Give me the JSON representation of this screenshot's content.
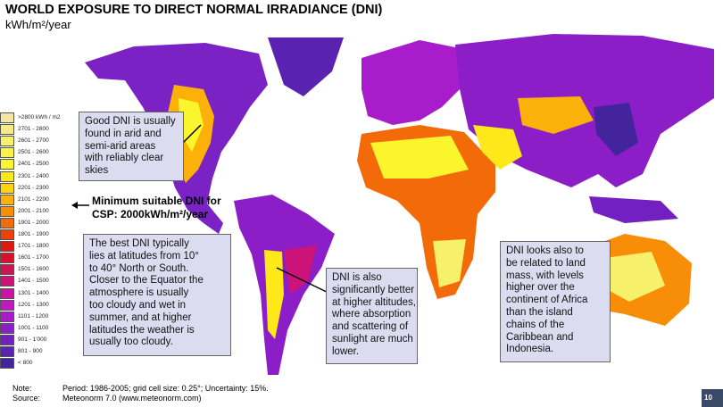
{
  "header": {
    "title": "WORLD EXPOSURE TO DIRECT NORMAL IRRADIANCE (DNI)",
    "subtitle": "kWh/m²/year"
  },
  "legend": {
    "items": [
      {
        "label": ">2800 kWh / m2",
        "color": "#f2e6a0"
      },
      {
        "label": "2701 - 2800",
        "color": "#f5ec86"
      },
      {
        "label": "2601 - 2700",
        "color": "#f7f06a"
      },
      {
        "label": "2501 - 2600",
        "color": "#f9f24c"
      },
      {
        "label": "2401 - 2500",
        "color": "#fbf52e"
      },
      {
        "label": "2301 - 2400",
        "color": "#fde81a"
      },
      {
        "label": "2201 - 2300",
        "color": "#fdd20f"
      },
      {
        "label": "2101 - 2200",
        "color": "#fcb10a"
      },
      {
        "label": "2001 - 2100",
        "color": "#f88e08"
      },
      {
        "label": "1901 - 2000",
        "color": "#f36a08"
      },
      {
        "label": "1801 - 1900",
        "color": "#ec420a"
      },
      {
        "label": "1701 - 1800",
        "color": "#e2180e"
      },
      {
        "label": "1601 - 1700",
        "color": "#d8102c"
      },
      {
        "label": "1501 - 1600",
        "color": "#d01250"
      },
      {
        "label": "1401 - 1500",
        "color": "#cc1478"
      },
      {
        "label": "1301 - 1400",
        "color": "#c816a0"
      },
      {
        "label": "1201 - 1300",
        "color": "#c01ac4"
      },
      {
        "label": "1101 - 1200",
        "color": "#a81ccc"
      },
      {
        "label": "1001 - 1100",
        "color": "#8c1ec8"
      },
      {
        "label": "901 - 1'000",
        "color": "#7220c0"
      },
      {
        "label": "801 - 900",
        "color": "#5a22b0"
      },
      {
        "label": "< 800",
        "color": "#44249c"
      }
    ]
  },
  "callout": {
    "lines": [
      "Minimum suitable DNI for",
      "CSP: 2000kWh/m²/year"
    ]
  },
  "notes": [
    {
      "lines": [
        "Good DNI is usually",
        "found in arid and",
        "semi-arid areas",
        "with reliably clear",
        "skies"
      ]
    },
    {
      "lines": [
        "The best DNI typically",
        "lies at latitudes from 10°",
        "to 40° North or South.",
        "Closer to the Equator the",
        "atmosphere is usually",
        "too cloudy and wet in",
        "summer, and at higher",
        "latitudes the weather is",
        "usually too cloudy."
      ]
    },
    {
      "lines": [
        "DNI is also",
        "significantly better",
        "at higher altitudes,",
        "where absorption",
        "and scattering of",
        "sunlight are much",
        "lower."
      ]
    },
    {
      "lines": [
        "DNI looks also to",
        "be related to land",
        "mass, with levels",
        "higher over the",
        "continent of Africa",
        "than the island",
        "chains of the",
        "Caribbean and",
        "Indonesia."
      ]
    }
  ],
  "footer": {
    "note_label": "Note:",
    "note": "Period: 1986-2005; grid cell size: 0.25°; Uncertainty: 15%.",
    "source_label": "Source:",
    "source": "Meteonorm 7.0 (www.meteonorm.com)",
    "page": "10"
  }
}
